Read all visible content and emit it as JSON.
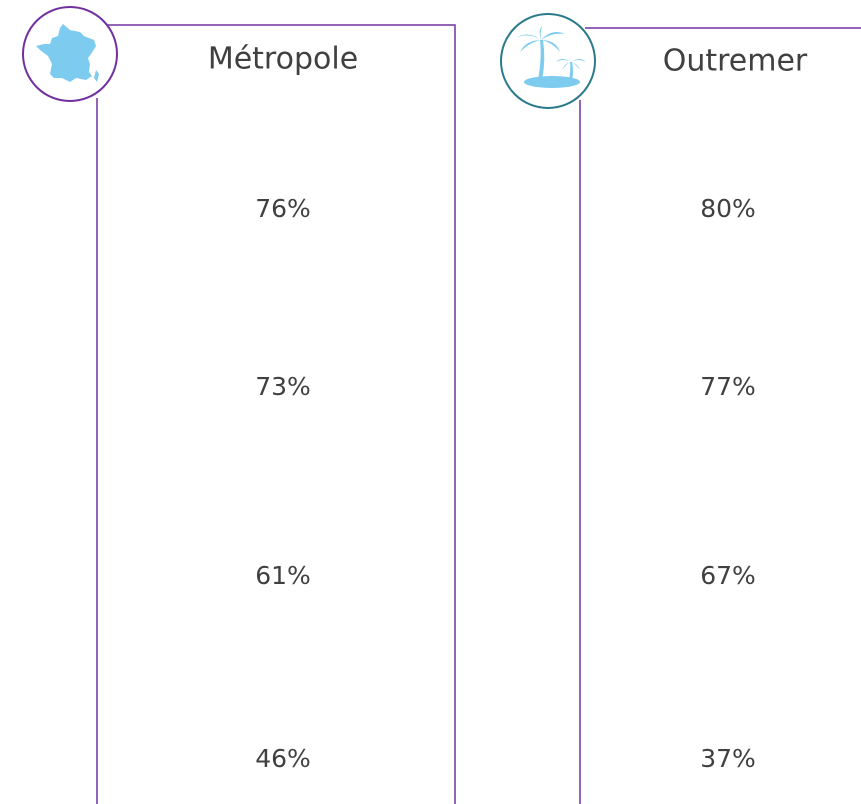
{
  "columns": [
    {
      "title": "Métropole",
      "values": [
        "76%",
        "73%",
        "61%",
        "46%"
      ]
    },
    {
      "title": "Outremer",
      "values": [
        "80%",
        "77%",
        "67%",
        "37%"
      ]
    }
  ]
}
